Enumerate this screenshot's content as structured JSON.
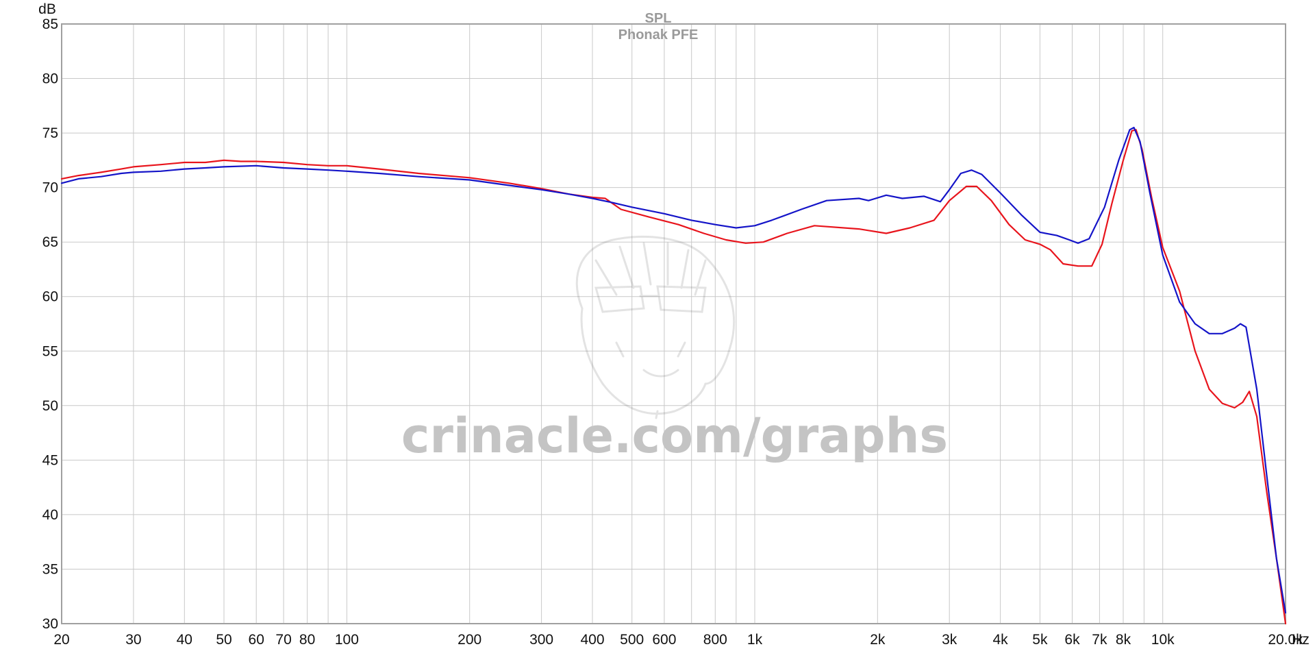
{
  "chart_data": {
    "type": "line",
    "title": "SPL",
    "subtitle": "Phonak PFE",
    "xlabel": "Hz",
    "ylabel": "dB",
    "x_scale": "log",
    "xlim": [
      20,
      20000
    ],
    "ylim": [
      30,
      85
    ],
    "grid": true,
    "legend": "none",
    "x_ticks": [
      {
        "value": 20,
        "label": "20"
      },
      {
        "value": 30,
        "label": "30"
      },
      {
        "value": 40,
        "label": "40"
      },
      {
        "value": 50,
        "label": "50"
      },
      {
        "value": 60,
        "label": "60"
      },
      {
        "value": 70,
        "label": "70"
      },
      {
        "value": 80,
        "label": "80"
      },
      {
        "value": 100,
        "label": "100"
      },
      {
        "value": 200,
        "label": "200"
      },
      {
        "value": 300,
        "label": "300"
      },
      {
        "value": 400,
        "label": "400"
      },
      {
        "value": 500,
        "label": "500"
      },
      {
        "value": 600,
        "label": "600"
      },
      {
        "value": 800,
        "label": "800"
      },
      {
        "value": 1000,
        "label": "1k"
      },
      {
        "value": 2000,
        "label": "2k"
      },
      {
        "value": 3000,
        "label": "3k"
      },
      {
        "value": 4000,
        "label": "4k"
      },
      {
        "value": 5000,
        "label": "5k"
      },
      {
        "value": 6000,
        "label": "6k"
      },
      {
        "value": 7000,
        "label": "7k"
      },
      {
        "value": 8000,
        "label": "8k"
      },
      {
        "value": 10000,
        "label": "10k"
      },
      {
        "value": 20000,
        "label": "20.0k"
      }
    ],
    "x_gridlines": [
      20,
      30,
      40,
      50,
      60,
      70,
      80,
      90,
      100,
      200,
      300,
      400,
      500,
      600,
      700,
      800,
      900,
      1000,
      2000,
      3000,
      4000,
      5000,
      6000,
      7000,
      8000,
      9000,
      10000,
      20000
    ],
    "y_ticks": [
      30,
      35,
      40,
      45,
      50,
      55,
      60,
      65,
      70,
      75,
      80,
      85
    ],
    "series": [
      {
        "color": "#e8141c",
        "points": [
          [
            20,
            70.8
          ],
          [
            22,
            71.1
          ],
          [
            25,
            71.4
          ],
          [
            28,
            71.7
          ],
          [
            30,
            71.9
          ],
          [
            35,
            72.1
          ],
          [
            40,
            72.3
          ],
          [
            45,
            72.3
          ],
          [
            50,
            72.5
          ],
          [
            55,
            72.4
          ],
          [
            60,
            72.4
          ],
          [
            70,
            72.3
          ],
          [
            80,
            72.1
          ],
          [
            90,
            72.0
          ],
          [
            100,
            72.0
          ],
          [
            120,
            71.7
          ],
          [
            150,
            71.3
          ],
          [
            200,
            70.9
          ],
          [
            250,
            70.4
          ],
          [
            300,
            69.9
          ],
          [
            350,
            69.4
          ],
          [
            400,
            69.1
          ],
          [
            430,
            69.0
          ],
          [
            470,
            68.0
          ],
          [
            550,
            67.3
          ],
          [
            650,
            66.6
          ],
          [
            750,
            65.8
          ],
          [
            850,
            65.2
          ],
          [
            950,
            64.9
          ],
          [
            1050,
            65.0
          ],
          [
            1200,
            65.8
          ],
          [
            1400,
            66.5
          ],
          [
            1800,
            66.2
          ],
          [
            2100,
            65.8
          ],
          [
            2400,
            66.3
          ],
          [
            2750,
            67.0
          ],
          [
            3000,
            68.8
          ],
          [
            3300,
            70.1
          ],
          [
            3500,
            70.1
          ],
          [
            3800,
            68.8
          ],
          [
            4200,
            66.6
          ],
          [
            4600,
            65.2
          ],
          [
            5000,
            64.8
          ],
          [
            5300,
            64.3
          ],
          [
            5700,
            63.0
          ],
          [
            6200,
            62.8
          ],
          [
            6700,
            62.8
          ],
          [
            7100,
            64.8
          ],
          [
            7500,
            68.5
          ],
          [
            8000,
            72.5
          ],
          [
            8400,
            75.2
          ],
          [
            8600,
            75.3
          ],
          [
            8900,
            73.5
          ],
          [
            9400,
            69.0
          ],
          [
            10000,
            64.5
          ],
          [
            11000,
            60.5
          ],
          [
            12000,
            55.0
          ],
          [
            13000,
            51.5
          ],
          [
            14000,
            50.2
          ],
          [
            15000,
            49.8
          ],
          [
            15700,
            50.3
          ],
          [
            16300,
            51.3
          ],
          [
            17000,
            49.0
          ],
          [
            18000,
            42.0
          ],
          [
            19000,
            36.0
          ],
          [
            20000,
            30.0
          ]
        ]
      },
      {
        "color": "#1414c8",
        "points": [
          [
            20,
            70.4
          ],
          [
            22,
            70.8
          ],
          [
            25,
            71.0
          ],
          [
            28,
            71.3
          ],
          [
            30,
            71.4
          ],
          [
            35,
            71.5
          ],
          [
            40,
            71.7
          ],
          [
            45,
            71.8
          ],
          [
            50,
            71.9
          ],
          [
            60,
            72.0
          ],
          [
            70,
            71.8
          ],
          [
            80,
            71.7
          ],
          [
            90,
            71.6
          ],
          [
            100,
            71.5
          ],
          [
            120,
            71.3
          ],
          [
            150,
            71.0
          ],
          [
            200,
            70.7
          ],
          [
            250,
            70.2
          ],
          [
            300,
            69.8
          ],
          [
            350,
            69.4
          ],
          [
            400,
            69.0
          ],
          [
            450,
            68.6
          ],
          [
            500,
            68.2
          ],
          [
            600,
            67.6
          ],
          [
            700,
            67.0
          ],
          [
            800,
            66.6
          ],
          [
            900,
            66.3
          ],
          [
            1000,
            66.5
          ],
          [
            1100,
            67.0
          ],
          [
            1300,
            68.0
          ],
          [
            1500,
            68.8
          ],
          [
            1800,
            69.0
          ],
          [
            1900,
            68.8
          ],
          [
            2100,
            69.3
          ],
          [
            2300,
            69.0
          ],
          [
            2600,
            69.2
          ],
          [
            2850,
            68.7
          ],
          [
            3000,
            69.8
          ],
          [
            3200,
            71.3
          ],
          [
            3400,
            71.6
          ],
          [
            3600,
            71.2
          ],
          [
            4000,
            69.5
          ],
          [
            4500,
            67.5
          ],
          [
            5000,
            65.9
          ],
          [
            5500,
            65.6
          ],
          [
            5900,
            65.2
          ],
          [
            6200,
            64.9
          ],
          [
            6600,
            65.3
          ],
          [
            7200,
            68.2
          ],
          [
            7800,
            72.5
          ],
          [
            8300,
            75.3
          ],
          [
            8500,
            75.5
          ],
          [
            8800,
            74.2
          ],
          [
            9300,
            69.5
          ],
          [
            10000,
            63.8
          ],
          [
            11000,
            59.5
          ],
          [
            12000,
            57.5
          ],
          [
            13000,
            56.6
          ],
          [
            14000,
            56.6
          ],
          [
            15000,
            57.1
          ],
          [
            15500,
            57.5
          ],
          [
            16000,
            57.2
          ],
          [
            17000,
            51.5
          ],
          [
            18000,
            43.5
          ],
          [
            19000,
            36.0
          ],
          [
            20000,
            31.0
          ]
        ]
      }
    ]
  },
  "watermark": {
    "text": "crinacle.com/graphs",
    "image": "mascot-sketch-icon"
  }
}
